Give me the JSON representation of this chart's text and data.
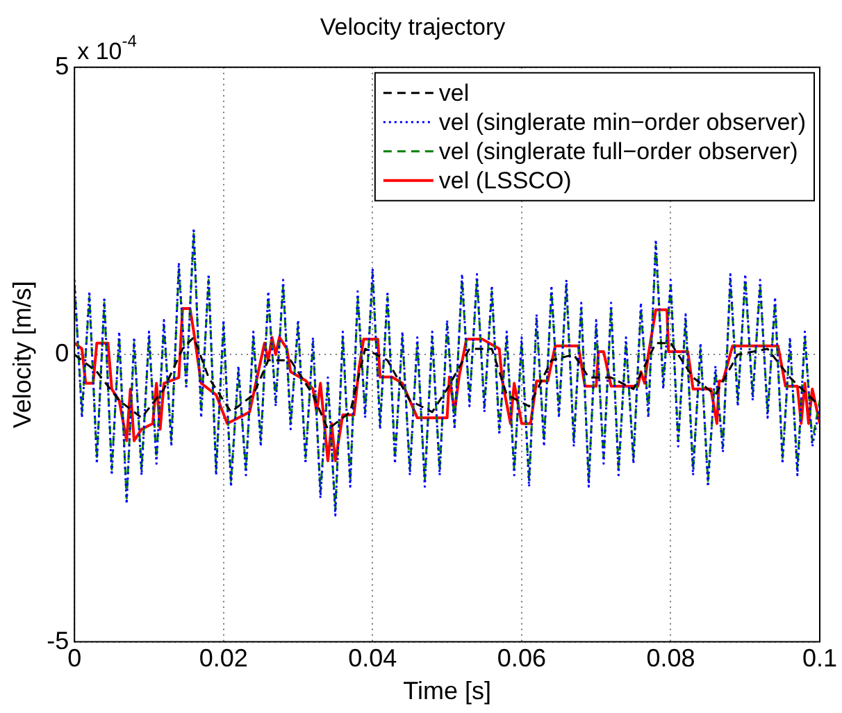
{
  "chart_data": {
    "type": "line",
    "title": "Velocity trajectory",
    "xlabel": "Time [s]",
    "ylabel": "Velocity [m/s]",
    "annotations": [
      "x 10$^{-4}$"
    ],
    "xlim": [
      0,
      0.1
    ],
    "xticks": [
      0,
      0.02,
      0.04,
      0.06,
      0.08,
      0.1
    ],
    "ylim": [
      -5,
      5
    ],
    "yticks": [
      -5,
      0,
      5
    ],
    "grid": true,
    "legend": "top right",
    "marker": "none",
    "series": [
      {
        "name": "vel",
        "color": "#000000",
        "line_style": "dashed",
        "x": [
          0,
          0.003,
          0.006,
          0.009,
          0.012,
          0.0145,
          0.016,
          0.018,
          0.021,
          0.024,
          0.026,
          0.029,
          0.032,
          0.034,
          0.037,
          0.039,
          0.042,
          0.045,
          0.048,
          0.05,
          0.053,
          0.056,
          0.058,
          0.061,
          0.064,
          0.067,
          0.069,
          0.072,
          0.075,
          0.078,
          0.08,
          0.083,
          0.086,
          0.089,
          0.093,
          0.096,
          0.1
        ],
        "values": [
          0,
          -0.3,
          -0.8,
          -1.1,
          -0.6,
          0.1,
          0.3,
          -0.4,
          -1.0,
          -0.7,
          -0.1,
          -0.1,
          -0.7,
          -1.3,
          -1.0,
          0.1,
          -0.1,
          -0.8,
          -1.0,
          -0.6,
          0.1,
          0.1,
          -0.7,
          -0.9,
          -0.1,
          0,
          -0.4,
          -0.4,
          -0.6,
          0.2,
          0.2,
          -0.4,
          -0.7,
          0,
          0.1,
          -0.4,
          -0.9
        ]
      },
      {
        "name": "vel (singlerate min−order observer)",
        "color": "#0000ff",
        "line_style": "dotted",
        "x": [
          0,
          0.001,
          0.002,
          0.003,
          0.004,
          0.005,
          0.006,
          0.007,
          0.008,
          0.009,
          0.01,
          0.011,
          0.012,
          0.013,
          0.014,
          0.015,
          0.016,
          0.017,
          0.018,
          0.019,
          0.02,
          0.021,
          0.022,
          0.023,
          0.024,
          0.025,
          0.026,
          0.027,
          0.028,
          0.029,
          0.03,
          0.031,
          0.032,
          0.033,
          0.034,
          0.035,
          0.036,
          0.037,
          0.038,
          0.039,
          0.04,
          0.041,
          0.042,
          0.043,
          0.044,
          0.045,
          0.046,
          0.047,
          0.048,
          0.049,
          0.05,
          0.051,
          0.052,
          0.053,
          0.054,
          0.055,
          0.056,
          0.057,
          0.058,
          0.059,
          0.06,
          0.061,
          0.062,
          0.063,
          0.064,
          0.065,
          0.066,
          0.067,
          0.068,
          0.069,
          0.07,
          0.071,
          0.072,
          0.073,
          0.074,
          0.075,
          0.076,
          0.077,
          0.078,
          0.079,
          0.08,
          0.081,
          0.082,
          0.083,
          0.084,
          0.085,
          0.086,
          0.087,
          0.088,
          0.089,
          0.09,
          0.091,
          0.092,
          0.093,
          0.094,
          0.095,
          0.096,
          0.097,
          0.098,
          0.099,
          0.1
        ],
        "values": [
          1.3,
          -1.1,
          1.1,
          -1.9,
          1.0,
          -2.1,
          0.4,
          -2.6,
          0.3,
          -2.1,
          0.4,
          -1.9,
          0.6,
          -1.6,
          1.6,
          -0.6,
          2.2,
          -1.1,
          1.4,
          -2.1,
          0.6,
          -2.3,
          -0.2,
          -2.1,
          0.4,
          -1.6,
          1.1,
          -0.9,
          1.3,
          -1.3,
          0.6,
          -1.9,
          0.3,
          -2.5,
          -0.4,
          -2.8,
          0.4,
          -2.3,
          1.1,
          -1.1,
          1.5,
          -1.3,
          1.1,
          -1.9,
          0.4,
          -2.1,
          0.3,
          -2.3,
          0.4,
          -2.1,
          0.6,
          -1.3,
          1.4,
          -0.9,
          1.4,
          -1.0,
          1.2,
          -1.4,
          0.4,
          -2.1,
          0.3,
          -2.3,
          0.7,
          -1.6,
          1.2,
          -1.1,
          1.3,
          -1.6,
          0.9,
          -2.3,
          0.6,
          -1.9,
          0.9,
          -2.1,
          0.3,
          -1.9,
          0.9,
          -1.1,
          2.0,
          -0.6,
          1.3,
          -1.6,
          0.7,
          -2.1,
          0.2,
          -2.3,
          -0.2,
          -1.7,
          1.4,
          -0.9,
          1.4,
          -0.8,
          1.3,
          -1.1,
          1.0,
          -1.9,
          0.3,
          -2.1,
          0.4,
          -1.6,
          -0.9
        ]
      },
      {
        "name": "vel (singlerate full−order observer)",
        "color": "#008000",
        "line_style": "dashed",
        "x": [
          0,
          0.001,
          0.002,
          0.003,
          0.004,
          0.005,
          0.006,
          0.007,
          0.008,
          0.009,
          0.01,
          0.011,
          0.012,
          0.013,
          0.014,
          0.015,
          0.016,
          0.017,
          0.018,
          0.019,
          0.02,
          0.021,
          0.022,
          0.023,
          0.024,
          0.025,
          0.026,
          0.027,
          0.028,
          0.029,
          0.03,
          0.031,
          0.032,
          0.033,
          0.034,
          0.035,
          0.036,
          0.037,
          0.038,
          0.039,
          0.04,
          0.041,
          0.042,
          0.043,
          0.044,
          0.045,
          0.046,
          0.047,
          0.048,
          0.049,
          0.05,
          0.051,
          0.052,
          0.053,
          0.054,
          0.055,
          0.056,
          0.057,
          0.058,
          0.059,
          0.06,
          0.061,
          0.062,
          0.063,
          0.064,
          0.065,
          0.066,
          0.067,
          0.068,
          0.069,
          0.07,
          0.071,
          0.072,
          0.073,
          0.074,
          0.075,
          0.076,
          0.077,
          0.078,
          0.079,
          0.08,
          0.081,
          0.082,
          0.083,
          0.084,
          0.085,
          0.086,
          0.087,
          0.088,
          0.089,
          0.09,
          0.091,
          0.092,
          0.093,
          0.094,
          0.095,
          0.096,
          0.097,
          0.098,
          0.099,
          0.1
        ],
        "values": [
          1.2,
          -1.0,
          1.0,
          -1.8,
          0.9,
          -2.0,
          0.3,
          -2.5,
          0.2,
          -2.0,
          0.3,
          -1.8,
          0.5,
          -1.5,
          1.5,
          -0.5,
          2.1,
          -1.0,
          1.3,
          -2.0,
          0.5,
          -2.2,
          -0.3,
          -2.0,
          0.3,
          -1.5,
          1.0,
          -0.8,
          1.2,
          -1.2,
          0.5,
          -1.8,
          0.2,
          -2.4,
          -0.5,
          -2.7,
          0.3,
          -2.2,
          1.0,
          -1.0,
          1.4,
          -1.2,
          1.0,
          -1.8,
          0.3,
          -2.0,
          0.2,
          -2.2,
          0.3,
          -2.0,
          0.5,
          -1.2,
          1.3,
          -0.8,
          1.3,
          -0.9,
          1.1,
          -1.3,
          0.3,
          -2.0,
          0.2,
          -2.2,
          0.6,
          -1.5,
          1.1,
          -1.0,
          1.2,
          -1.5,
          0.8,
          -2.2,
          0.5,
          -1.8,
          0.8,
          -2.0,
          0.2,
          -1.8,
          0.8,
          -1.0,
          1.9,
          -0.5,
          1.2,
          -1.5,
          0.6,
          -2.0,
          0.1,
          -2.2,
          -0.3,
          -1.6,
          1.3,
          -0.8,
          1.3,
          -0.7,
          1.2,
          -1.0,
          0.9,
          -1.8,
          0.2,
          -2.0,
          0.3,
          -1.5,
          -0.8
        ]
      },
      {
        "name": "vel (LSSCO)",
        "color": "#ff0000",
        "line_style": "solid",
        "x": [
          0,
          0.001,
          0.0015,
          0.0025,
          0.003,
          0.0045,
          0.005,
          0.006,
          0.007,
          0.0075,
          0.008,
          0.009,
          0.0105,
          0.011,
          0.0115,
          0.012,
          0.014,
          0.0145,
          0.0155,
          0.016,
          0.017,
          0.019,
          0.0205,
          0.0235,
          0.0245,
          0.0255,
          0.026,
          0.0265,
          0.027,
          0.0275,
          0.0285,
          0.029,
          0.031,
          0.032,
          0.0325,
          0.033,
          0.034,
          0.0345,
          0.035,
          0.036,
          0.0375,
          0.0382,
          0.0388,
          0.0407,
          0.041,
          0.0426,
          0.044,
          0.046,
          0.05,
          0.0503,
          0.051,
          0.0516,
          0.0526,
          0.0547,
          0.057,
          0.0574,
          0.0585,
          0.059,
          0.06,
          0.0612,
          0.062,
          0.0635,
          0.0645,
          0.0676,
          0.0685,
          0.07,
          0.0703,
          0.071,
          0.072,
          0.0756,
          0.076,
          0.0765,
          0.077,
          0.078,
          0.0795,
          0.0797,
          0.0823,
          0.083,
          0.0854,
          0.0862,
          0.0865,
          0.087,
          0.0883,
          0.0944,
          0.0954,
          0.097,
          0.0975,
          0.098,
          0.0985,
          0.099,
          0.1
        ],
        "values": [
          0.2,
          0.1,
          -0.5,
          -0.5,
          0.2,
          0.2,
          -0.6,
          -0.8,
          -1.5,
          -0.6,
          -1.5,
          -1.3,
          -1.2,
          -0.5,
          -1.3,
          -0.5,
          -0.4,
          0.8,
          0.8,
          0.4,
          -0.5,
          -0.7,
          -1.2,
          -1.0,
          -0.4,
          0.2,
          -0.1,
          0.3,
          0,
          0.3,
          0.1,
          -0.3,
          -0.45,
          -0.6,
          -1.0,
          -0.5,
          -1.85,
          -1.2,
          -1.85,
          -1.05,
          -1.05,
          -0.22,
          0.27,
          0.27,
          -0.39,
          -0.39,
          -0.5,
          -1.1,
          -1.1,
          -0.39,
          -1.0,
          -0.39,
          0.27,
          0.27,
          0.1,
          -0.46,
          -1.2,
          -0.5,
          -1.2,
          -1.2,
          -0.46,
          -0.46,
          0.15,
          0.15,
          -0.55,
          -0.55,
          0.05,
          0.05,
          -0.55,
          -0.55,
          -0.3,
          -0.5,
          0,
          0.78,
          0.78,
          0.05,
          0.05,
          -0.6,
          -0.6,
          -1.2,
          -0.46,
          -0.46,
          0.15,
          0.15,
          -0.55,
          -0.55,
          -1.2,
          -0.5,
          -1.2,
          -0.6,
          -1.2
        ]
      }
    ]
  }
}
